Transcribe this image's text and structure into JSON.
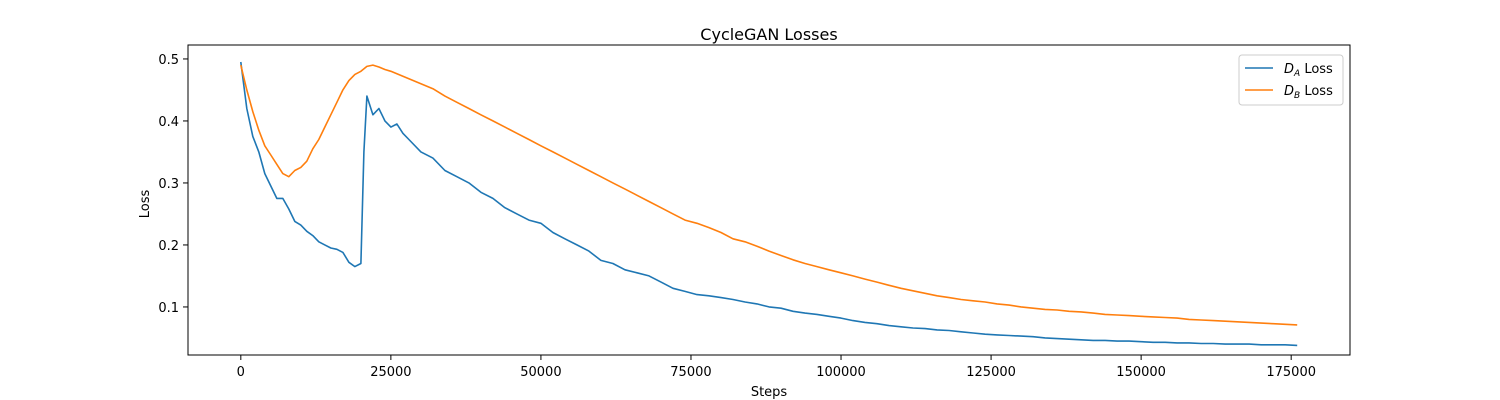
{
  "chart_data": {
    "type": "line",
    "title": "CycleGAN  Losses",
    "xlabel": "Steps",
    "ylabel": "Loss",
    "xlim": [
      -8800,
      184800
    ],
    "ylim": [
      0.0225,
      0.5225
    ],
    "xticks": [
      0,
      25000,
      50000,
      75000,
      100000,
      125000,
      150000,
      175000
    ],
    "yticks": [
      0.1,
      0.2,
      0.3,
      0.4,
      0.5
    ],
    "grid": false,
    "legend": "top-right",
    "series": [
      {
        "name": "D_A Loss",
        "legend_main": "D",
        "legend_sub": "A",
        "legend_suffix": " Loss",
        "color": "#1f77b4",
        "x": [
          0,
          1000,
          2000,
          3000,
          4000,
          5000,
          6000,
          7000,
          8000,
          9000,
          10000,
          11000,
          12000,
          13000,
          14000,
          15000,
          16000,
          17000,
          18000,
          19000,
          20000,
          20500,
          21000,
          22000,
          23000,
          24000,
          25000,
          26000,
          27000,
          28000,
          30000,
          32000,
          34000,
          36000,
          38000,
          40000,
          42000,
          44000,
          46000,
          48000,
          50000,
          52000,
          54000,
          56000,
          58000,
          60000,
          62000,
          64000,
          66000,
          68000,
          70000,
          72000,
          74000,
          76000,
          78000,
          80000,
          82000,
          84000,
          86000,
          88000,
          90000,
          92000,
          94000,
          96000,
          98000,
          100000,
          102000,
          104000,
          106000,
          108000,
          110000,
          112000,
          114000,
          116000,
          118000,
          120000,
          122000,
          124000,
          126000,
          128000,
          130000,
          132000,
          134000,
          136000,
          138000,
          140000,
          142000,
          144000,
          146000,
          148000,
          150000,
          152000,
          154000,
          156000,
          158000,
          160000,
          162000,
          164000,
          166000,
          168000,
          170000,
          172000,
          174000,
          176000
        ],
        "y": [
          0.495,
          0.42,
          0.375,
          0.35,
          0.315,
          0.295,
          0.275,
          0.275,
          0.258,
          0.238,
          0.232,
          0.222,
          0.215,
          0.205,
          0.2,
          0.195,
          0.193,
          0.188,
          0.172,
          0.165,
          0.17,
          0.35,
          0.44,
          0.41,
          0.42,
          0.4,
          0.39,
          0.395,
          0.38,
          0.37,
          0.35,
          0.34,
          0.32,
          0.31,
          0.3,
          0.285,
          0.275,
          0.26,
          0.25,
          0.24,
          0.235,
          0.22,
          0.21,
          0.2,
          0.19,
          0.175,
          0.17,
          0.16,
          0.155,
          0.15,
          0.14,
          0.13,
          0.125,
          0.12,
          0.118,
          0.115,
          0.112,
          0.108,
          0.105,
          0.1,
          0.098,
          0.093,
          0.09,
          0.088,
          0.085,
          0.082,
          0.078,
          0.075,
          0.073,
          0.07,
          0.068,
          0.066,
          0.065,
          0.063,
          0.062,
          0.06,
          0.058,
          0.056,
          0.055,
          0.054,
          0.053,
          0.052,
          0.05,
          0.049,
          0.048,
          0.047,
          0.046,
          0.046,
          0.045,
          0.045,
          0.044,
          0.043,
          0.043,
          0.042,
          0.042,
          0.041,
          0.041,
          0.04,
          0.04,
          0.04,
          0.039,
          0.039,
          0.039,
          0.038
        ]
      },
      {
        "name": "D_B Loss",
        "legend_main": "D",
        "legend_sub": "B",
        "legend_suffix": " Loss",
        "color": "#ff7f0e",
        "x": [
          0,
          1000,
          2000,
          3000,
          4000,
          5000,
          6000,
          7000,
          8000,
          9000,
          10000,
          11000,
          12000,
          13000,
          14000,
          15000,
          16000,
          17000,
          18000,
          19000,
          20000,
          21000,
          22000,
          23000,
          24000,
          25000,
          26000,
          28000,
          30000,
          32000,
          34000,
          36000,
          38000,
          40000,
          42000,
          44000,
          46000,
          48000,
          50000,
          52000,
          54000,
          56000,
          58000,
          60000,
          62000,
          64000,
          66000,
          68000,
          70000,
          72000,
          74000,
          76000,
          78000,
          80000,
          82000,
          84000,
          86000,
          88000,
          90000,
          92000,
          94000,
          96000,
          98000,
          100000,
          102000,
          104000,
          106000,
          108000,
          110000,
          112000,
          114000,
          116000,
          118000,
          120000,
          122000,
          124000,
          126000,
          128000,
          130000,
          132000,
          134000,
          136000,
          138000,
          140000,
          142000,
          144000,
          146000,
          148000,
          150000,
          152000,
          154000,
          156000,
          158000,
          160000,
          162000,
          164000,
          166000,
          168000,
          170000,
          172000,
          174000,
          176000
        ],
        "y": [
          0.49,
          0.45,
          0.415,
          0.385,
          0.36,
          0.345,
          0.33,
          0.315,
          0.31,
          0.32,
          0.325,
          0.335,
          0.355,
          0.37,
          0.39,
          0.41,
          0.43,
          0.45,
          0.465,
          0.475,
          0.48,
          0.488,
          0.49,
          0.487,
          0.483,
          0.48,
          0.476,
          0.468,
          0.46,
          0.452,
          0.44,
          0.43,
          0.42,
          0.41,
          0.4,
          0.39,
          0.38,
          0.37,
          0.36,
          0.35,
          0.34,
          0.33,
          0.32,
          0.31,
          0.3,
          0.29,
          0.28,
          0.27,
          0.26,
          0.25,
          0.24,
          0.235,
          0.228,
          0.22,
          0.21,
          0.205,
          0.198,
          0.19,
          0.183,
          0.176,
          0.17,
          0.165,
          0.16,
          0.155,
          0.15,
          0.145,
          0.14,
          0.135,
          0.13,
          0.126,
          0.122,
          0.118,
          0.115,
          0.112,
          0.11,
          0.108,
          0.105,
          0.103,
          0.1,
          0.098,
          0.096,
          0.095,
          0.093,
          0.092,
          0.09,
          0.088,
          0.087,
          0.086,
          0.085,
          0.084,
          0.083,
          0.082,
          0.08,
          0.079,
          0.078,
          0.077,
          0.076,
          0.075,
          0.074,
          0.073,
          0.072,
          0.071
        ]
      }
    ]
  }
}
